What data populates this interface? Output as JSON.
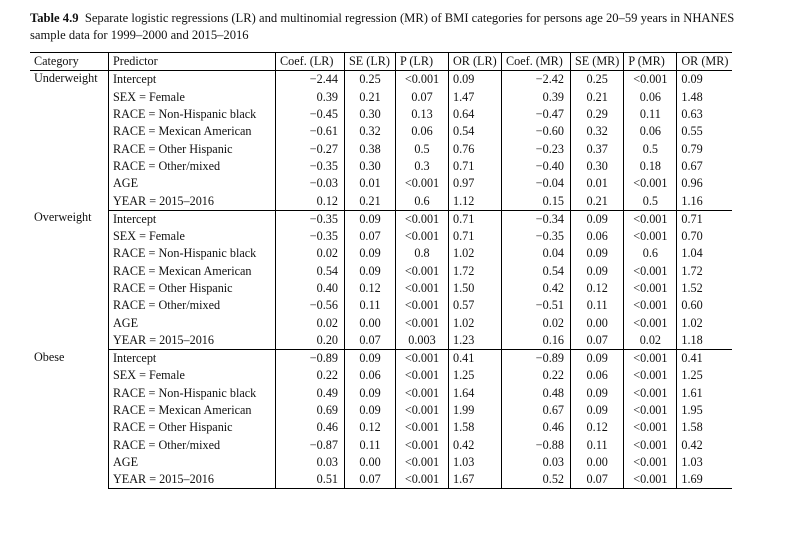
{
  "caption": {
    "label": "Table 4.9",
    "text": "Separate logistic regressions (LR) and multinomial regression (MR) of BMI categories for persons age 20–59 years in NHANES sample data for 1999–2000 and 2015–2016"
  },
  "table": {
    "headers": [
      "Category",
      "Predictor",
      "Coef. (LR)",
      "SE (LR)",
      "P (LR)",
      "OR (LR)",
      "Coef. (MR)",
      "SE (MR)",
      "P (MR)",
      "OR (MR)"
    ],
    "groups": [
      {
        "category": "Underweight",
        "rows": [
          [
            "Intercept",
            "−2.44",
            "0.25",
            "<0.001",
            "0.09",
            "−2.42",
            "0.25",
            "<0.001",
            "0.09"
          ],
          [
            "SEX = Female",
            "0.39",
            "0.21",
            "0.07",
            "1.47",
            "0.39",
            "0.21",
            "0.06",
            "1.48"
          ],
          [
            "RACE = Non-Hispanic black",
            "−0.45",
            "0.30",
            "0.13",
            "0.64",
            "−0.47",
            "0.29",
            "0.11",
            "0.63"
          ],
          [
            "RACE = Mexican American",
            "−0.61",
            "0.32",
            "0.06",
            "0.54",
            "−0.60",
            "0.32",
            "0.06",
            "0.55"
          ],
          [
            "RACE = Other Hispanic",
            "−0.27",
            "0.38",
            "0.5",
            "0.76",
            "−0.23",
            "0.37",
            "0.5",
            "0.79"
          ],
          [
            "RACE = Other/mixed",
            "−0.35",
            "0.30",
            "0.3",
            "0.71",
            "−0.40",
            "0.30",
            "0.18",
            "0.67"
          ],
          [
            "AGE",
            "−0.03",
            "0.01",
            "<0.001",
            "0.97",
            "−0.04",
            "0.01",
            "<0.001",
            "0.96"
          ],
          [
            "YEAR = 2015–2016",
            "0.12",
            "0.21",
            "0.6",
            "1.12",
            "0.15",
            "0.21",
            "0.5",
            "1.16"
          ]
        ]
      },
      {
        "category": "Overweight",
        "rows": [
          [
            "Intercept",
            "−0.35",
            "0.09",
            "<0.001",
            "0.71",
            "−0.34",
            "0.09",
            "<0.001",
            "0.71"
          ],
          [
            "SEX = Female",
            "−0.35",
            "0.07",
            "<0.001",
            "0.71",
            "−0.35",
            "0.06",
            "<0.001",
            "0.70"
          ],
          [
            "RACE = Non-Hispanic black",
            "0.02",
            "0.09",
            "0.8",
            "1.02",
            "0.04",
            "0.09",
            "0.6",
            "1.04"
          ],
          [
            "RACE = Mexican American",
            "0.54",
            "0.09",
            "<0.001",
            "1.72",
            "0.54",
            "0.09",
            "<0.001",
            "1.72"
          ],
          [
            "RACE = Other Hispanic",
            "0.40",
            "0.12",
            "<0.001",
            "1.50",
            "0.42",
            "0.12",
            "<0.001",
            "1.52"
          ],
          [
            "RACE = Other/mixed",
            "−0.56",
            "0.11",
            "<0.001",
            "0.57",
            "−0.51",
            "0.11",
            "<0.001",
            "0.60"
          ],
          [
            "AGE",
            "0.02",
            "0.00",
            "<0.001",
            "1.02",
            "0.02",
            "0.00",
            "<0.001",
            "1.02"
          ],
          [
            "YEAR = 2015–2016",
            "0.20",
            "0.07",
            "0.003",
            "1.23",
            "0.16",
            "0.07",
            "0.02",
            "1.18"
          ]
        ]
      },
      {
        "category": "Obese",
        "rows": [
          [
            "Intercept",
            "−0.89",
            "0.09",
            "<0.001",
            "0.41",
            "−0.89",
            "0.09",
            "<0.001",
            "0.41"
          ],
          [
            "SEX = Female",
            "0.22",
            "0.06",
            "<0.001",
            "1.25",
            "0.22",
            "0.06",
            "<0.001",
            "1.25"
          ],
          [
            "RACE = Non-Hispanic black",
            "0.49",
            "0.09",
            "<0.001",
            "1.64",
            "0.48",
            "0.09",
            "<0.001",
            "1.61"
          ],
          [
            "RACE = Mexican American",
            "0.69",
            "0.09",
            "<0.001",
            "1.99",
            "0.67",
            "0.09",
            "<0.001",
            "1.95"
          ],
          [
            "RACE = Other Hispanic",
            "0.46",
            "0.12",
            "<0.001",
            "1.58",
            "0.46",
            "0.12",
            "<0.001",
            "1.58"
          ],
          [
            "RACE = Other/mixed",
            "−0.87",
            "0.11",
            "<0.001",
            "0.42",
            "−0.88",
            "0.11",
            "<0.001",
            "0.42"
          ],
          [
            "AGE",
            "0.03",
            "0.00",
            "<0.001",
            "1.03",
            "0.03",
            "0.00",
            "<0.001",
            "1.03"
          ],
          [
            "YEAR = 2015–2016",
            "0.51",
            "0.07",
            "<0.001",
            "1.67",
            "0.52",
            "0.07",
            "<0.001",
            "1.69"
          ]
        ]
      }
    ]
  }
}
